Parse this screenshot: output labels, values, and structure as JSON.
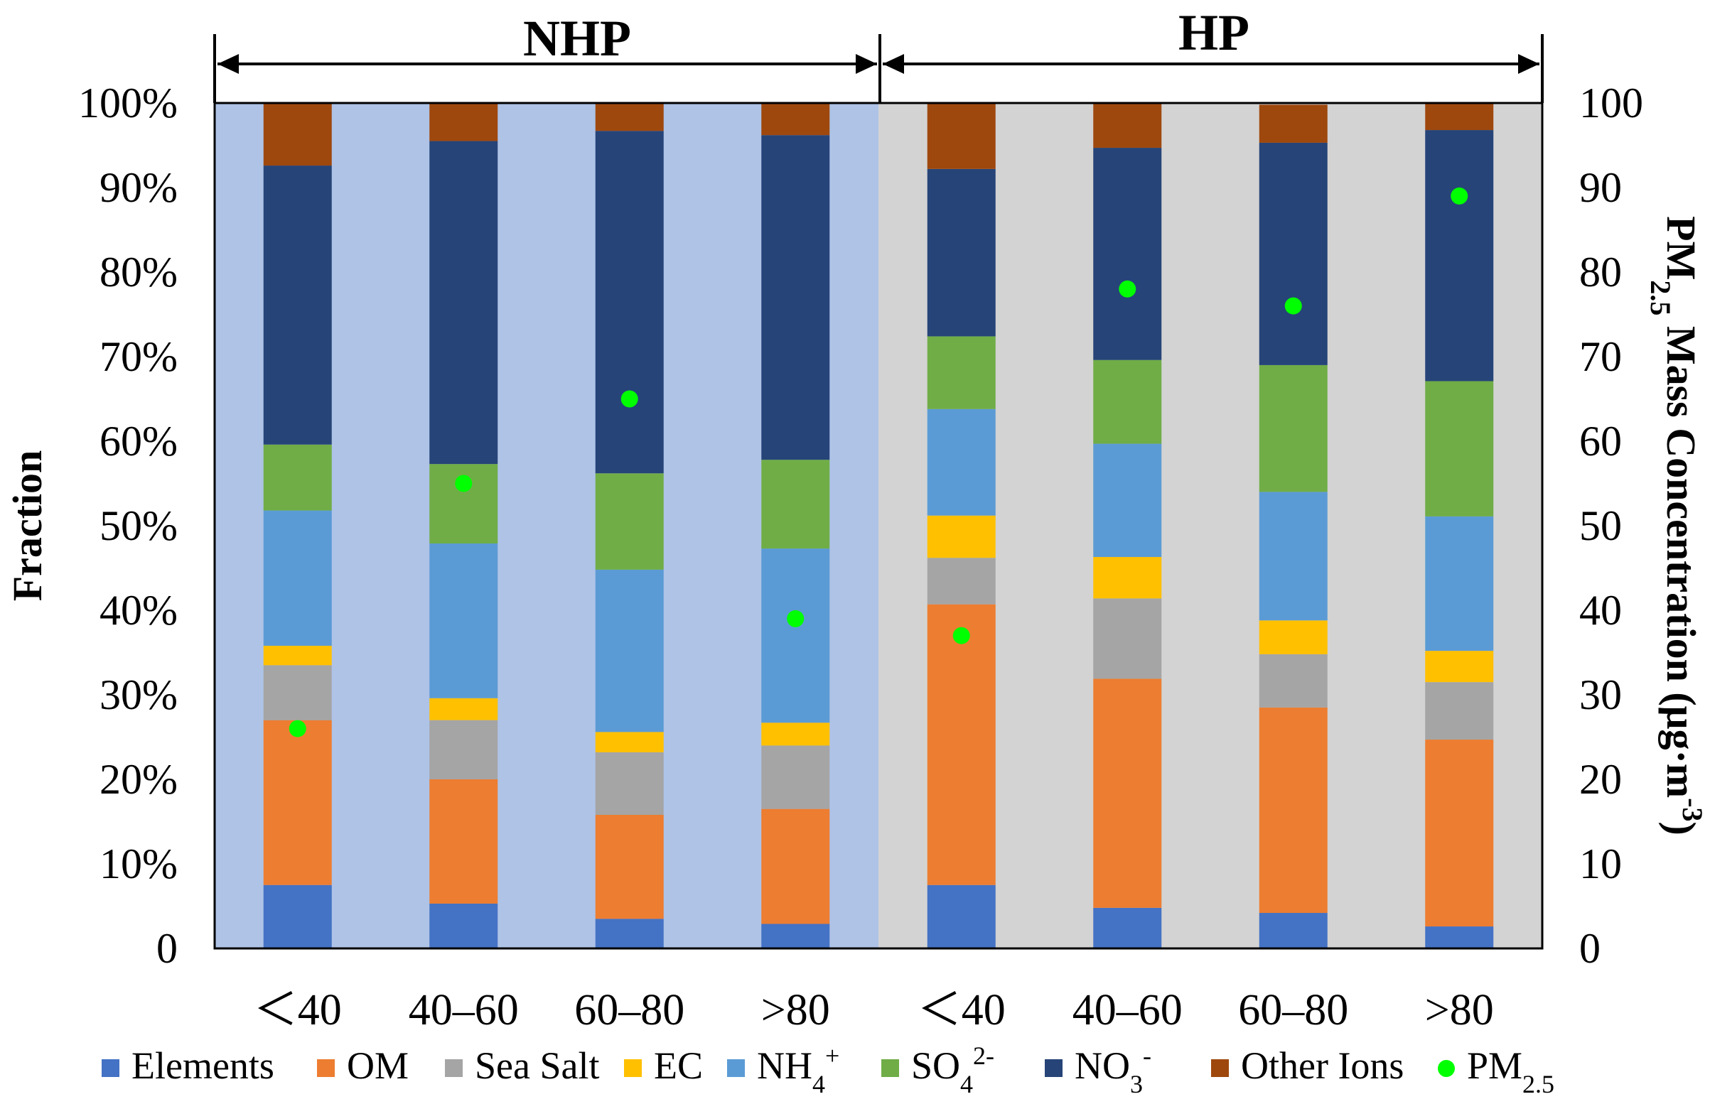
{
  "chart_data": {
    "type": "bar",
    "stacked": true,
    "groups": [
      {
        "label": "NHP",
        "background": "#aec3e6"
      },
      {
        "label": "HP",
        "background": "#d3d3d3"
      }
    ],
    "categories": [
      "<40",
      "40–60",
      "60–80",
      ">80",
      "<40",
      "40–60",
      "60–80",
      ">80"
    ],
    "category_labels": [
      "＜40",
      "40–60",
      "60–80",
      ">80",
      "＜40",
      "40–60",
      "60–80",
      ">80"
    ],
    "series": [
      {
        "name": "Elements",
        "color": "#4472c4",
        "values": [
          7.5,
          5.3,
          3.5,
          2.9,
          7.5,
          4.8,
          4.2,
          2.6
        ]
      },
      {
        "name": "OM",
        "color": "#ed7d31",
        "values": [
          19.5,
          14.7,
          12.3,
          13.6,
          33.2,
          27.1,
          24.3,
          22.1
        ]
      },
      {
        "name": "Sea Salt",
        "color": "#a5a5a5",
        "values": [
          6.5,
          7.0,
          7.4,
          7.5,
          5.5,
          9.5,
          6.3,
          6.8
        ]
      },
      {
        "name": "EC",
        "color": "#ffc000",
        "values": [
          2.3,
          2.6,
          2.4,
          2.7,
          5.0,
          4.9,
          4.0,
          3.7
        ]
      },
      {
        "name": "NH4+",
        "color": "#5b9bd5",
        "values": [
          16.0,
          18.3,
          19.2,
          20.6,
          12.6,
          13.4,
          15.2,
          15.9
        ]
      },
      {
        "name": "SO42-",
        "color": "#70ad47",
        "values": [
          7.8,
          9.4,
          11.4,
          10.5,
          8.6,
          9.9,
          15.0,
          16.0
        ]
      },
      {
        "name": "NO3-",
        "color": "#264478",
        "values": [
          33.0,
          38.2,
          40.5,
          38.4,
          19.8,
          25.1,
          26.3,
          29.7
        ]
      },
      {
        "name": "Other Ions",
        "color": "#9e480e",
        "values": [
          7.4,
          4.5,
          3.3,
          3.8,
          7.8,
          5.2,
          4.5,
          3.2
        ]
      }
    ],
    "pm25": {
      "name": "PM2.5",
      "color": "#00ff00",
      "values": [
        26,
        55,
        65,
        39,
        37,
        78,
        76,
        89
      ]
    },
    "title_arrows": [
      "NHP",
      "HP"
    ],
    "ylabel": "Fraction",
    "y2label": "PM2.5 Mass Concentration (μg·m-3)",
    "ylim": [
      0,
      100
    ],
    "y2lim": [
      0,
      100
    ],
    "yticks": [
      "0",
      "10%",
      "20%",
      "30%",
      "40%",
      "50%",
      "60%",
      "70%",
      "80%",
      "90%",
      "100%"
    ],
    "y2ticks": [
      "0",
      "10",
      "20",
      "30",
      "40",
      "50",
      "60",
      "70",
      "80",
      "90",
      "100"
    ],
    "legend": [
      "Elements",
      "OM",
      "Sea Salt",
      "EC",
      "NH4+",
      "SO42-",
      "NO3-",
      "Other Ions",
      "PM2.5"
    ],
    "legend_position": "bottom"
  }
}
